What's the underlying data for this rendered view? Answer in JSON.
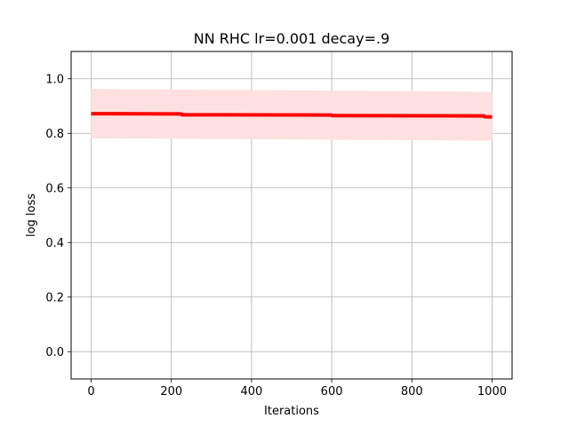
{
  "chart_data": {
    "type": "line",
    "title": "NN RHC lr=0.001 decay=.9",
    "xlabel": "Iterations",
    "ylabel": "log loss",
    "xlim": [
      -50,
      1050
    ],
    "ylim": [
      -0.1,
      1.1
    ],
    "xticks": [
      0,
      200,
      400,
      600,
      800,
      1000
    ],
    "yticks": [
      0.0,
      0.2,
      0.4,
      0.6,
      0.8,
      1.0
    ],
    "xtick_labels": [
      "0",
      "200",
      "400",
      "600",
      "800",
      "1000"
    ],
    "ytick_labels": [
      "0.0",
      "0.2",
      "0.4",
      "0.6",
      "0.8",
      "1.0"
    ],
    "grid": true,
    "series": [
      {
        "color": "#ff0000",
        "x": [
          0,
          225,
          226,
          600,
          601,
          980,
          981,
          1000
        ],
        "y": [
          0.872,
          0.871,
          0.868,
          0.867,
          0.865,
          0.864,
          0.861,
          0.86
        ]
      }
    ],
    "band": {
      "color": "#ffe0e0",
      "x": [
        0,
        1000
      ],
      "upper": [
        0.962,
        0.951
      ],
      "lower": [
        0.783,
        0.774
      ]
    }
  }
}
